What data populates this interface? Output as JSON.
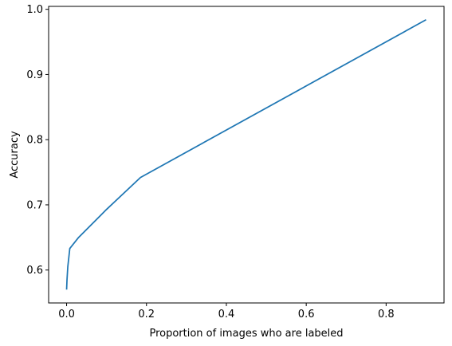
{
  "chart_data": {
    "type": "line",
    "title": "",
    "xlabel": "Proportion of images who are labeled",
    "ylabel": "Accuracy",
    "xlim": [
      -0.045,
      0.945
    ],
    "ylim": [
      0.5495,
      1.0045
    ],
    "xticks": [
      0.0,
      0.2,
      0.4,
      0.6,
      0.8
    ],
    "xtick_labels": [
      "0.0",
      "0.2",
      "0.4",
      "0.6",
      "0.8"
    ],
    "yticks": [
      0.6,
      0.7,
      0.8,
      0.9,
      1.0
    ],
    "ytick_labels": [
      "0.6",
      "0.7",
      "0.8",
      "0.9",
      "1.0"
    ],
    "grid": false,
    "line_color": "#1f77b4",
    "series": [
      {
        "x": [
          0.0,
          0.001,
          0.003,
          0.008,
          0.03,
          0.1,
          0.185,
          0.9
        ],
        "y": [
          0.57,
          0.585,
          0.605,
          0.633,
          0.65,
          0.693,
          0.742,
          0.984
        ]
      }
    ]
  }
}
